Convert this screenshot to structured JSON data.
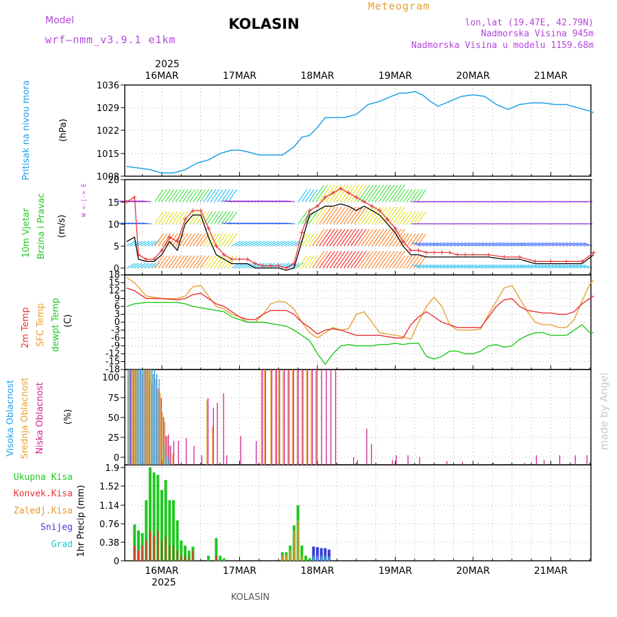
{
  "header": {
    "model_label": "Model",
    "model_name": "wrf—nmm_v3.9.1  e1km",
    "title": "KOLASIN",
    "subtitle": "Meteogram",
    "coords": "lon,lat (19.47E, 42.79N)",
    "altitude": "Nadmorska Visina 945m",
    "model_altitude": "Nadmorska Visina u modelu 1159.68m",
    "footer": "KOLASIN",
    "watermark": "made by Angel"
  },
  "colors": {
    "pressure": "#1ea0e6",
    "wind_speed": "#000000",
    "gust": "#e63232",
    "temp2m": "#e63232",
    "sfc_temp": "#e6a032",
    "dewpoint": "#1ec81e",
    "cloud_high": "#1ea0e6",
    "cloud_mid": "#e6a032",
    "cloud_low": "#d21e8c",
    "precip_total": "#1ec81e",
    "precip_conv": "#e63232",
    "precip_frozen": "#e6962d",
    "precip_snow": "#3c3cdc",
    "precip_hail": "#1ec8c8",
    "model_text": "#b446dc",
    "subtitle_text": "#e6a032"
  },
  "time_axis": {
    "year": "2025",
    "days": [
      "16MAR",
      "17MAR",
      "18MAR",
      "19MAR",
      "20MAR",
      "21MAR"
    ]
  },
  "chart_data": [
    {
      "type": "line",
      "panel": "pressure",
      "ylabel": "Pritisak na nivou mora",
      "unit": "(hPa)",
      "ylim": [
        1008,
        1036
      ],
      "yticks": [
        "1036",
        "1029",
        "1022",
        "1015",
        "1008"
      ],
      "x_days": [
        -0.45,
        -0.3,
        -0.15,
        0,
        0.15,
        0.3,
        0.45,
        0.6,
        0.75,
        0.9,
        1.0,
        1.1,
        1.25,
        1.4,
        1.55,
        1.7,
        1.8,
        1.9,
        2.0,
        2.1,
        2.2,
        2.35,
        2.5,
        2.65,
        2.8,
        2.95,
        3.05,
        3.15,
        3.25,
        3.35,
        3.45,
        3.55,
        3.7,
        3.85,
        4.0,
        4.15,
        4.3,
        4.45,
        4.6,
        4.75,
        4.9,
        5.05,
        5.2,
        5.35,
        5.5,
        5.55
      ],
      "series": [
        {
          "values": [
            1011,
            1010.5,
            1010,
            1009,
            1009,
            1010,
            1012,
            1013,
            1015,
            1016,
            1016,
            1015.5,
            1014.5,
            1014.5,
            1014.5,
            1017,
            1020,
            1020.5,
            1023,
            1026,
            1026,
            1026,
            1027,
            1030,
            1031,
            1032.5,
            1033.5,
            1033.5,
            1034,
            1033,
            1031,
            1029.5,
            1031,
            1032.5,
            1033,
            1032.5,
            1030,
            1028.5,
            1030,
            1030.5,
            1030.5,
            1030,
            1030,
            1029,
            1028,
            1027.5
          ]
        }
      ]
    },
    {
      "type": "line",
      "panel": "wind",
      "ylabel": "10m Vjetar Brzina i Pravac",
      "unit": "(m/s)",
      "direction_legend": "W <-|-> E",
      "ylim": [
        -2,
        20
      ],
      "yticks": [
        "20",
        "15",
        "10",
        "5",
        "0"
      ],
      "x_days": [
        -0.45,
        -0.35,
        -0.3,
        -0.2,
        -0.1,
        0,
        0.1,
        0.2,
        0.3,
        0.4,
        0.5,
        0.6,
        0.7,
        0.8,
        0.9,
        1.0,
        1.1,
        1.2,
        1.3,
        1.4,
        1.5,
        1.6,
        1.7,
        1.8,
        1.9,
        2.0,
        2.1,
        2.2,
        2.3,
        2.4,
        2.5,
        2.6,
        2.7,
        2.8,
        2.9,
        3.0,
        3.1,
        3.2,
        3.3,
        3.4,
        3.5,
        3.6,
        3.7,
        3.8,
        3.9,
        4.0,
        4.2,
        4.4,
        4.6,
        4.8,
        5.0,
        5.2,
        5.4,
        5.55
      ],
      "series": [
        {
          "values": [
            6,
            7,
            2,
            1.5,
            1.5,
            3,
            6,
            4,
            10,
            12,
            12,
            7,
            3,
            2,
            1,
            1,
            1,
            0,
            0,
            0,
            0,
            -0.5,
            0,
            6,
            12,
            13,
            14,
            14,
            14.5,
            14,
            13,
            14,
            13,
            12,
            10,
            8,
            5,
            3,
            3,
            2.5,
            2.5,
            2.5,
            2.5,
            2.5,
            2.5,
            2.5,
            2.5,
            2,
            2,
            1,
            1,
            1,
            1,
            3
          ]
        },
        {
          "values": [
            15,
            16,
            3,
            2,
            2,
            4,
            7,
            6,
            11,
            13,
            13,
            9,
            5,
            3,
            2,
            2,
            2,
            1,
            0.5,
            0.5,
            0.5,
            0,
            1,
            8,
            13,
            14,
            16,
            17,
            18,
            17,
            16,
            15,
            14,
            13,
            11,
            9,
            6,
            4,
            4,
            3.5,
            3.5,
            3.5,
            3.5,
            3,
            3,
            3,
            3,
            2.5,
            2.5,
            1.5,
            1.5,
            1.5,
            1.5,
            3.5
          ]
        }
      ]
    },
    {
      "type": "line",
      "panel": "temperature",
      "ylabel": "2m Temp SFC Temp dewpt Temp",
      "unit": "(C)",
      "ylim": [
        -18,
        18
      ],
      "yticks": [
        "18",
        "15",
        "12",
        "9",
        "6",
        "3",
        "0",
        "-3",
        "-6",
        "-9",
        "-12",
        "-15",
        "-18"
      ],
      "x_days": [
        -0.45,
        -0.35,
        -0.2,
        0,
        0.2,
        0.3,
        0.4,
        0.5,
        0.6,
        0.7,
        0.8,
        0.9,
        1.0,
        1.1,
        1.2,
        1.3,
        1.4,
        1.5,
        1.6,
        1.7,
        1.8,
        1.9,
        2.0,
        2.1,
        2.2,
        2.3,
        2.4,
        2.5,
        2.6,
        2.7,
        2.8,
        2.9,
        3.0,
        3.1,
        3.2,
        3.3,
        3.4,
        3.5,
        3.6,
        3.7,
        3.8,
        3.9,
        4.0,
        4.1,
        4.2,
        4.3,
        4.4,
        4.5,
        4.6,
        4.7,
        4.8,
        4.9,
        5.0,
        5.1,
        5.2,
        5.3,
        5.4,
        5.5,
        5.55
      ],
      "series": [
        {
          "name": "2m Temp",
          "values": [
            13,
            12,
            9,
            9,
            8.5,
            9,
            10.5,
            11,
            9,
            7,
            6,
            4,
            2,
            1,
            1,
            3,
            4.5,
            4.5,
            4.5,
            3,
            0,
            -2,
            -4.5,
            -3,
            -2.5,
            -3,
            -4,
            -5,
            -5,
            -5,
            -5,
            -5.5,
            -6,
            -6,
            -1,
            2,
            4,
            2,
            0,
            -1,
            -2,
            -2,
            -2,
            -2,
            2,
            6,
            8.5,
            9,
            6,
            4.5,
            4,
            3.5,
            3.5,
            3,
            3,
            4,
            7,
            9,
            10
          ]
        },
        {
          "name": "SFC Temp",
          "values": [
            17,
            15,
            10,
            9,
            9,
            10,
            13.5,
            14,
            10,
            6,
            5,
            3,
            2,
            0,
            0,
            3,
            7,
            8,
            7.5,
            5,
            0,
            -4,
            -6,
            -4,
            -2,
            -3,
            -2.5,
            3,
            4,
            0,
            -4,
            -4.5,
            -5,
            -5.5,
            -6.5,
            0,
            6,
            9.5,
            6,
            -1,
            -3,
            -3,
            -3,
            -2.5,
            3,
            8,
            13,
            14,
            9,
            4,
            0,
            -1,
            -1,
            -2,
            -2,
            1,
            8,
            14.5,
            16
          ]
        },
        {
          "name": "dewpt Temp",
          "values": [
            6,
            7,
            7.5,
            7.5,
            7.5,
            7,
            6,
            5.5,
            5,
            4.5,
            4,
            2,
            1,
            0,
            0,
            0,
            -0.5,
            -1,
            -1.5,
            -3,
            -5,
            -7,
            -12,
            -16,
            -12,
            -9,
            -8.5,
            -9,
            -9,
            -9,
            -8.5,
            -8.5,
            -8,
            -8.5,
            -8,
            -8,
            -13,
            -14,
            -13,
            -11,
            -11,
            -12,
            -12,
            -11,
            -9,
            -8.5,
            -9.5,
            -9,
            -6.5,
            -5,
            -4,
            -4,
            -5,
            -5,
            -5,
            -3,
            -1,
            -4,
            -4
          ]
        }
      ]
    },
    {
      "type": "bar",
      "panel": "clouds",
      "ylabel": "Visoka Oblacnost Srednja Oblacnost Niska Oblacnost",
      "unit": "(%)",
      "ylim": [
        0,
        100
      ],
      "yticks": [
        "100",
        "75",
        "50",
        "25",
        "0"
      ],
      "x_days": [
        -0.42,
        -0.38,
        -0.35,
        -0.32,
        -0.29,
        -0.26,
        -0.23,
        -0.2,
        -0.17,
        -0.14,
        -0.11,
        -0.08,
        -0.05,
        -0.02,
        0.01,
        0.04,
        0.07,
        0.1,
        0.14,
        0.2,
        0.3,
        0.4,
        0.5,
        0.58,
        0.65,
        0.7,
        0.78,
        0.82,
        1.0,
        1.2,
        1.28,
        1.32,
        1.4,
        1.46,
        1.5,
        1.56,
        1.62,
        1.68,
        1.74,
        1.8,
        1.86,
        1.92,
        1.98,
        2.04,
        2.1,
        2.16,
        2.22,
        2.45,
        2.5,
        2.62,
        2.68,
        2.95,
        3.0,
        3.15,
        3.3,
        3.65,
        3.85,
        4.05,
        4.25,
        4.65,
        4.8,
        4.9,
        5.1,
        5.3,
        5.45
      ],
      "series": [
        {
          "name": "Visoka Oblacnost",
          "values": [
            100,
            100,
            100,
            100,
            100,
            100,
            100,
            100,
            100,
            100,
            100,
            100,
            95,
            90,
            60,
            20,
            10,
            5,
            0,
            0,
            0,
            0,
            0,
            0,
            0,
            0,
            0,
            0,
            0,
            0,
            0,
            0,
            0,
            0,
            0,
            0,
            0,
            0,
            0,
            0,
            0,
            0,
            0,
            0,
            0,
            0,
            0,
            0,
            0,
            0,
            0,
            0,
            0,
            0,
            0,
            0,
            0,
            0,
            0,
            0,
            0,
            0,
            0,
            0,
            0
          ]
        },
        {
          "name": "Srednja Oblacnost",
          "values": [
            100,
            100,
            100,
            100,
            100,
            100,
            100,
            100,
            100,
            100,
            95,
            90,
            80,
            75,
            55,
            45,
            30,
            20,
            12,
            0,
            0,
            0,
            0,
            68,
            40,
            0,
            0,
            0,
            0,
            0,
            100,
            100,
            100,
            100,
            100,
            100,
            100,
            100,
            100,
            100,
            100,
            100,
            100,
            0,
            0,
            0,
            0,
            0,
            0,
            0,
            0,
            0,
            0,
            0,
            0,
            0,
            0,
            0,
            0,
            0,
            0,
            0,
            0,
            0,
            0
          ]
        },
        {
          "name": "Niska Oblacnost",
          "values": [
            100,
            100,
            100,
            100,
            100,
            95,
            100,
            100,
            90,
            85,
            100,
            95,
            80,
            70,
            50,
            30,
            32,
            20,
            25,
            25,
            28,
            20,
            10,
            70,
            60,
            65,
            75,
            10,
            30,
            25,
            100,
            100,
            100,
            100,
            100,
            100,
            100,
            100,
            100,
            100,
            100,
            100,
            100,
            100,
            100,
            100,
            100,
            8,
            5,
            38,
            22,
            5,
            10,
            10,
            8,
            4,
            3,
            2,
            2,
            2,
            10,
            5,
            10,
            10,
            10
          ]
        }
      ]
    },
    {
      "type": "bar",
      "panel": "precipitation",
      "ylabel": "1hr Precip",
      "unit": "(mm)",
      "legend": [
        "Ukupna Kisa",
        "Konvek.Kisa",
        "Zaledj.Kisa",
        "Snijeg",
        "Grad"
      ],
      "ylim": [
        0,
        1.9
      ],
      "yticks": [
        "1.9",
        "1.52",
        "1.14",
        "0.76",
        "0.38",
        "0"
      ],
      "x_days": [
        -0.35,
        -0.3,
        -0.25,
        -0.2,
        -0.15,
        -0.1,
        -0.05,
        0,
        0.05,
        0.1,
        0.15,
        0.2,
        0.25,
        0.3,
        0.35,
        0.4,
        0.6,
        0.7,
        0.75,
        0.8,
        1.55,
        1.6,
        1.65,
        1.7,
        1.75,
        1.8,
        1.85,
        1.9,
        1.95,
        2.0,
        2.05,
        2.1,
        2.15
      ],
      "series": [
        {
          "name": "Ukupna Kisa",
          "values": [
            0.72,
            0.6,
            0.55,
            1.2,
            1.85,
            1.75,
            1.7,
            1.4,
            1.6,
            1.2,
            1.2,
            0.8,
            0.4,
            0.3,
            0.2,
            0.28,
            0.1,
            0.45,
            0.1,
            0.05,
            0.17,
            0.17,
            0.3,
            0.7,
            1.1,
            0.3,
            0.1,
            0.05,
            0.28,
            0.27,
            0.25,
            0.25,
            0.22
          ]
        },
        {
          "name": "Konvek.Kisa",
          "values": [
            0.3,
            0.2,
            0.3,
            0.4,
            0.6,
            0.5,
            0.6,
            0.4,
            0.5,
            0.3,
            0.3,
            0.2,
            0.1,
            0.1,
            0.05,
            0.2,
            0,
            0.1,
            0,
            0,
            0.05,
            0.05,
            0.1,
            0.3,
            0.4,
            0.1,
            0,
            0,
            0,
            0,
            0,
            0,
            0
          ]
        },
        {
          "name": "Zaledj.Kisa",
          "values": [
            0,
            0,
            0,
            0,
            0,
            0,
            0,
            0,
            0,
            0,
            0,
            0,
            0,
            0,
            0,
            0,
            0,
            0,
            0,
            0,
            0.1,
            0.12,
            0.2,
            0.6,
            0.8,
            0.1,
            0,
            0,
            0,
            0,
            0,
            0,
            0
          ]
        },
        {
          "name": "Snijeg",
          "values": [
            0,
            0,
            0,
            0,
            0,
            0,
            0,
            0,
            0,
            0,
            0,
            0,
            0,
            0,
            0,
            0,
            0,
            0,
            0,
            0,
            0,
            0,
            0,
            0,
            0,
            0,
            0,
            0,
            0.28,
            0.27,
            0.25,
            0.25,
            0.22
          ]
        },
        {
          "name": "Grad",
          "values": [
            0,
            0,
            0,
            0,
            0,
            0,
            0,
            0,
            0,
            0,
            0,
            0,
            0,
            0,
            0,
            0,
            0,
            0,
            0,
            0,
            0,
            0,
            0,
            0,
            0,
            0,
            0,
            0,
            0.1,
            0.1,
            0.1,
            0.1,
            0.08
          ]
        }
      ]
    }
  ]
}
